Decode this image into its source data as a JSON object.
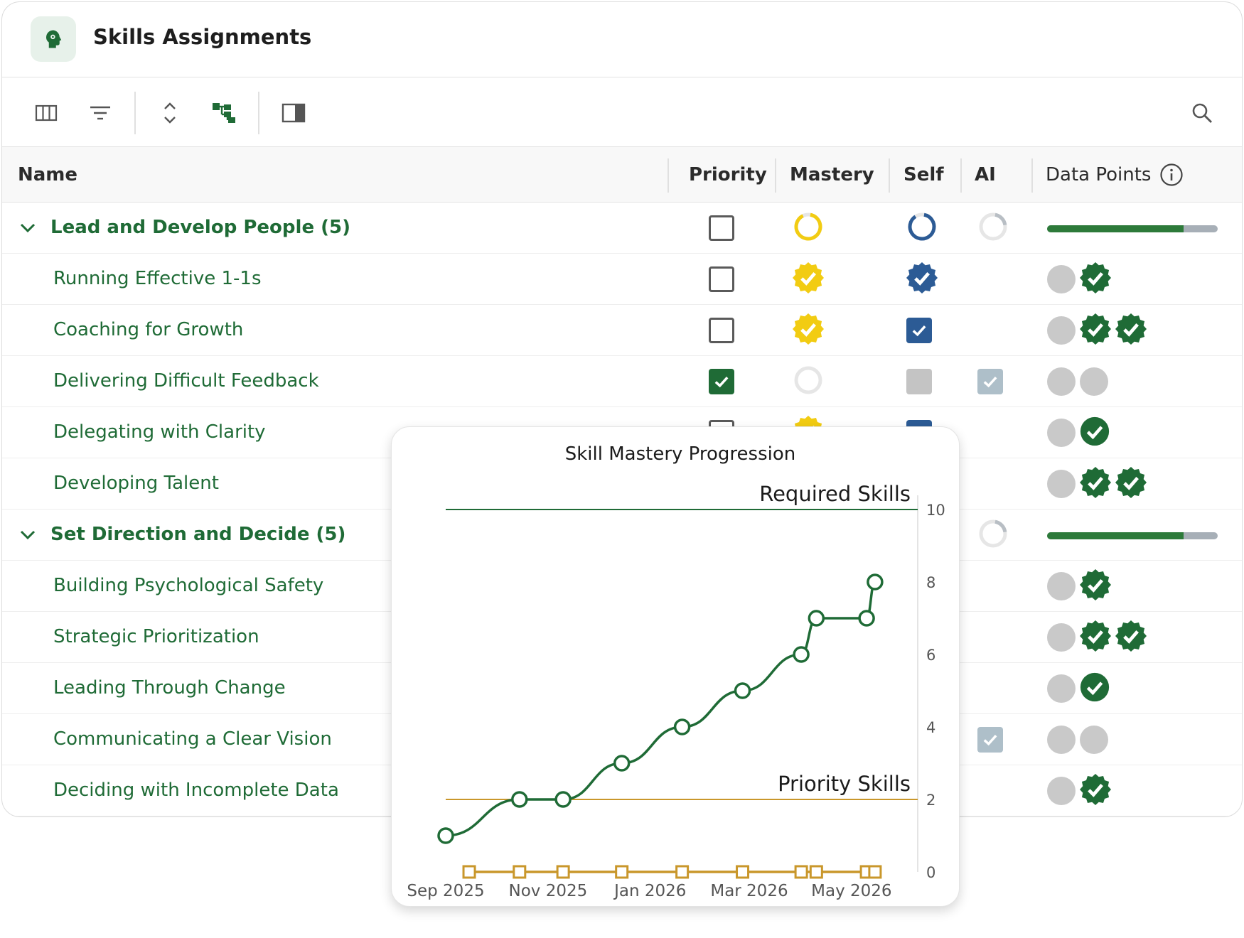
{
  "header": {
    "title": "Skills Assignments",
    "icon": "head-gear-icon"
  },
  "toolbar": {
    "buttons": [
      "columns-icon",
      "filter-icon",
      "expand-collapse-icon",
      "hierarchy-icon",
      "panel-toggle-icon"
    ],
    "search_icon": "search-icon"
  },
  "columns": {
    "name": "Name",
    "priority": "Priority",
    "mastery": "Mastery",
    "self": "Self",
    "ai": "AI",
    "data_points": "Data Points"
  },
  "colors": {
    "green": "#1f6b36",
    "yellow": "#f2cc12",
    "blue": "#2c5b95",
    "gray": "#c9c9c9"
  },
  "groups": [
    {
      "label": "Lead and Develop People (5)",
      "priority": "unchecked",
      "mastery": 0.9,
      "self": 0.88,
      "ai": 0.2,
      "progress": 0.8,
      "items": [
        {
          "label": "Running Effective 1-1s",
          "priority": "unchecked",
          "mastery": "verified-yellow",
          "self": "verified-blue",
          "ai": "",
          "data_points": [
            "gray",
            "badge"
          ]
        },
        {
          "label": "Coaching for Growth",
          "priority": "unchecked",
          "mastery": "verified-yellow",
          "self": "checked-blue",
          "ai": "",
          "data_points": [
            "gray",
            "badge",
            "badge"
          ]
        },
        {
          "label": "Delivering Difficult Feedback",
          "priority": "checked",
          "mastery": "empty",
          "self": "gray",
          "ai": "checked-light",
          "data_points": [
            "gray",
            "gray"
          ]
        },
        {
          "label": "Delegating with Clarity",
          "priority": "unchecked",
          "mastery": "verified-yellow",
          "self": "checked-blue",
          "ai": "",
          "data_points": [
            "gray",
            "check"
          ]
        },
        {
          "label": "Developing Talent",
          "priority": "",
          "mastery": "",
          "self": "",
          "ai": "",
          "data_points": [
            "gray",
            "badge",
            "badge"
          ]
        }
      ]
    },
    {
      "label": "Set Direction and Decide (5)",
      "priority": "",
      "mastery": null,
      "self": null,
      "ai": 0.2,
      "progress": 0.8,
      "items": [
        {
          "label": "Building Psychological Safety",
          "data_points": [
            "gray",
            "badge"
          ]
        },
        {
          "label": "Strategic Prioritization",
          "data_points": [
            "gray",
            "badge",
            "badge"
          ]
        },
        {
          "label": "Leading Through Change",
          "data_points": [
            "gray",
            "check"
          ]
        },
        {
          "label": "Communicating a Clear Vision",
          "ai": "checked-light",
          "data_points": [
            "gray",
            "gray"
          ]
        },
        {
          "label": "Deciding with Incomplete Data",
          "data_points": [
            "gray",
            "badge"
          ]
        }
      ]
    }
  ],
  "chart_data": {
    "type": "line",
    "title": "Skill Mastery Progression",
    "x_ticks": [
      "Sep 2025",
      "Nov 2025",
      "Jan 2026",
      "Mar 2026",
      "May 2026"
    ],
    "y_ticks": [
      0,
      2,
      4,
      6,
      8,
      10
    ],
    "ylim": [
      0,
      10
    ],
    "y_axis_side": "right",
    "reference_lines": [
      {
        "label": "Required Skills",
        "value": 10,
        "color": "#1f6b36"
      },
      {
        "label": "Priority Skills",
        "value": 2,
        "color": "#c9972b"
      }
    ],
    "series": [
      {
        "color": "#1f6b36",
        "marker": "circle",
        "x": [
          "2025-09-01",
          "2025-10-15",
          "2025-11-10",
          "2025-12-15",
          "2026-01-20",
          "2026-02-25",
          "2026-04-01",
          "2026-04-10",
          "2026-05-10",
          "2026-05-15"
        ],
        "values": [
          1,
          2,
          2,
          3,
          4,
          5,
          6,
          7,
          7,
          8
        ]
      },
      {
        "color": "#c9972b",
        "marker": "square",
        "x": [
          "2025-09-15",
          "2025-10-15",
          "2025-11-10",
          "2025-12-15",
          "2026-01-20",
          "2026-02-25",
          "2026-04-01",
          "2026-04-10",
          "2026-05-10",
          "2026-05-15"
        ],
        "values": [
          0,
          0,
          0,
          0,
          0,
          0,
          0,
          0,
          0,
          0
        ]
      }
    ]
  }
}
